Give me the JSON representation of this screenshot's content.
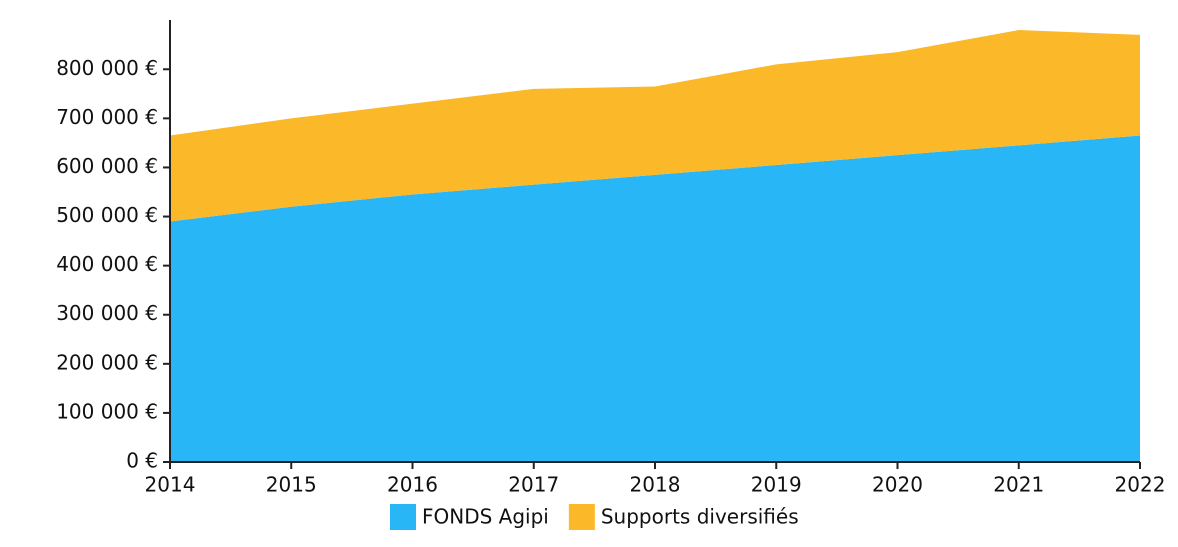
{
  "chart_data": {
    "type": "stacked_area",
    "categories": [
      "2014",
      "2015",
      "2016",
      "2017",
      "2018",
      "2019",
      "2020",
      "2021",
      "2022"
    ],
    "series": [
      {
        "name": "FONDS Agipi",
        "color": "#29b6f6",
        "values": [
          490000,
          520000,
          545000,
          565000,
          585000,
          605000,
          625000,
          645000,
          665000
        ]
      },
      {
        "name": "Supports diversifiés",
        "color": "#fbb829",
        "values": [
          175000,
          180000,
          185000,
          195000,
          180000,
          205000,
          210000,
          235000,
          205000
        ]
      }
    ],
    "ylim": [
      0,
      880000
    ],
    "yticks": [
      {
        "value": 0,
        "label": "0 €"
      },
      {
        "value": 100000,
        "label": "100 000 €"
      },
      {
        "value": 200000,
        "label": "200 000 €"
      },
      {
        "value": 300000,
        "label": "300 000 €"
      },
      {
        "value": 400000,
        "label": "400 000 €"
      },
      {
        "value": 500000,
        "label": "500 000 €"
      },
      {
        "value": 600000,
        "label": "600 000 €"
      },
      {
        "value": 700000,
        "label": "700 000 €"
      },
      {
        "value": 800000,
        "label": "800 000 €"
      }
    ],
    "grid": false
  }
}
